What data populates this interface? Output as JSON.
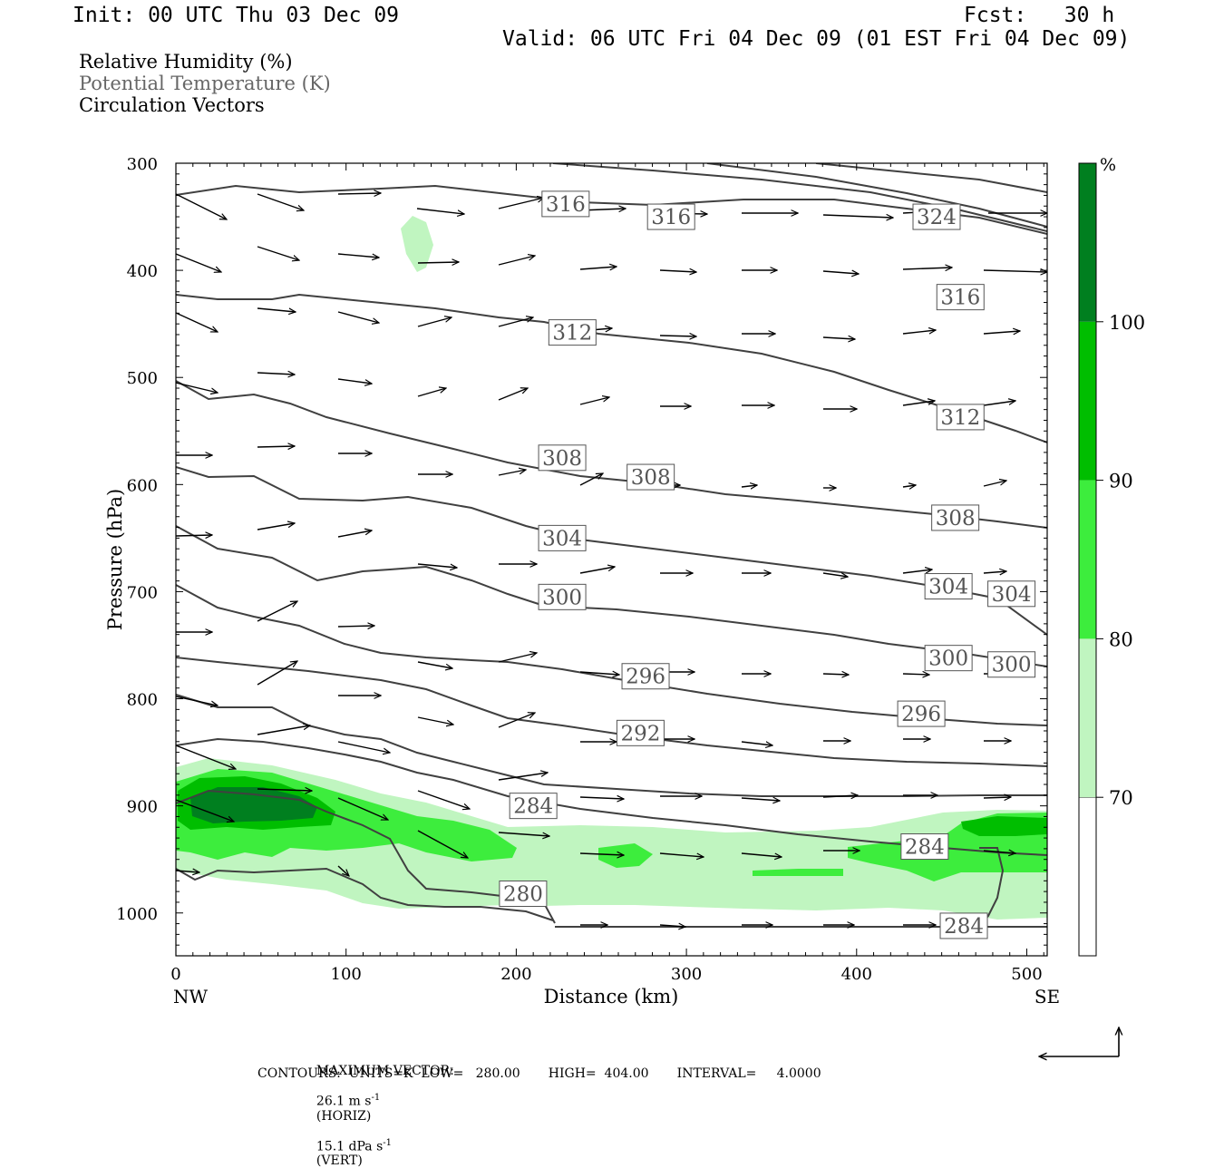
{
  "header": {
    "init": "Init: 00 UTC Thu 03 Dec 09",
    "fcst": "Fcst:   30 h",
    "valid": "Valid: 06 UTC Fri 04 Dec 09 (01 EST Fri 04 Dec 09)"
  },
  "legend_lines": [
    {
      "text": "Relative Humidity (%)",
      "color": "#000000"
    },
    {
      "text": "Potential Temperature (K)",
      "color": "#666666"
    },
    {
      "text": "Circulation Vectors",
      "color": "#000000"
    }
  ],
  "colors": {
    "rh70": "#c0f5c0",
    "rh80": "#3ded3d",
    "rh90": "#00be00",
    "rh100": "#007f1f",
    "contour": "#404040"
  },
  "footer": {
    "max_vector_label": "MAXIMUM VECTOR:",
    "horiz_value": "26.1 m s",
    "horiz_exp": "-1",
    "horiz_tag": "(HORIZ)",
    "vert_value": "15.1 dPa s",
    "vert_exp": "-1",
    "vert_tag": "(VERT)",
    "contours": "CONTOURS:  UNITS=K  LOW=   280.00       HIGH=  404.00       INTERVAL=     4.0000"
  },
  "chart_data": {
    "type": "contour",
    "xlabel": "Distance (km)",
    "ylabel": "Pressure (hPa)",
    "xlim": [
      0,
      512
    ],
    "ylim": [
      1040,
      300
    ],
    "x_ticks": [
      0,
      100,
      200,
      300,
      400,
      500
    ],
    "y_ticks": [
      300,
      400,
      500,
      600,
      700,
      800,
      900,
      1000
    ],
    "x_end_labels": [
      "NW",
      "SE"
    ],
    "colorbar": {
      "unit": "%",
      "levels": [
        70,
        80,
        90,
        100
      ],
      "colors": [
        "#c0f5c0",
        "#3ded3d",
        "#00be00",
        "#007f1f"
      ]
    },
    "contour_labels": [
      {
        "value": "316",
        "x": 229,
        "p": 338
      },
      {
        "value": "316",
        "x": 291,
        "p": 350
      },
      {
        "value": "324",
        "x": 447,
        "p": 350
      },
      {
        "value": "316",
        "x": 461,
        "p": 425
      },
      {
        "value": "312",
        "x": 233,
        "p": 458
      },
      {
        "value": "312",
        "x": 461,
        "p": 537
      },
      {
        "value": "308",
        "x": 227,
        "p": 575
      },
      {
        "value": "308",
        "x": 279,
        "p": 593
      },
      {
        "value": "308",
        "x": 458,
        "p": 631
      },
      {
        "value": "304",
        "x": 227,
        "p": 650
      },
      {
        "value": "304",
        "x": 454,
        "p": 695
      },
      {
        "value": "304",
        "x": 491,
        "p": 702
      },
      {
        "value": "300",
        "x": 227,
        "p": 705
      },
      {
        "value": "300",
        "x": 454,
        "p": 762
      },
      {
        "value": "300",
        "x": 491,
        "p": 768
      },
      {
        "value": "296",
        "x": 276,
        "p": 779
      },
      {
        "value": "296",
        "x": 438,
        "p": 814
      },
      {
        "value": "292",
        "x": 273,
        "p": 832
      },
      {
        "value": "284",
        "x": 210,
        "p": 900
      },
      {
        "value": "284",
        "x": 440,
        "p": 938
      },
      {
        "value": "280",
        "x": 204,
        "p": 982
      },
      {
        "value": "284",
        "x": 463,
        "p": 1012
      }
    ]
  }
}
